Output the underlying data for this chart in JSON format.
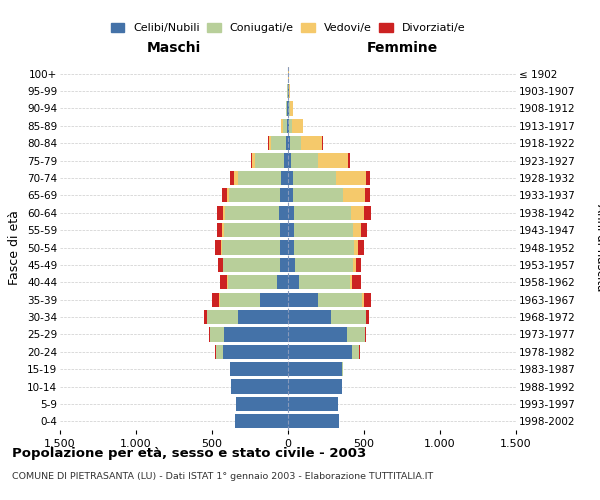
{
  "age_groups": [
    "0-4",
    "5-9",
    "10-14",
    "15-19",
    "20-24",
    "25-29",
    "30-34",
    "35-39",
    "40-44",
    "45-49",
    "50-54",
    "55-59",
    "60-64",
    "65-69",
    "70-74",
    "75-79",
    "80-84",
    "85-89",
    "90-94",
    "95-99",
    "100+"
  ],
  "birth_years": [
    "1998-2002",
    "1993-1997",
    "1988-1992",
    "1983-1987",
    "1978-1982",
    "1973-1977",
    "1968-1972",
    "1963-1967",
    "1958-1962",
    "1953-1957",
    "1948-1952",
    "1943-1947",
    "1938-1942",
    "1933-1937",
    "1928-1932",
    "1923-1927",
    "1918-1922",
    "1913-1917",
    "1908-1912",
    "1903-1907",
    "≤ 1902"
  ],
  "male": {
    "celibi": [
      350,
      340,
      375,
      380,
      430,
      420,
      330,
      185,
      70,
      50,
      50,
      55,
      60,
      55,
      45,
      25,
      15,
      8,
      4,
      2,
      2
    ],
    "coniugati": [
      0,
      0,
      0,
      0,
      45,
      90,
      200,
      265,
      325,
      375,
      385,
      365,
      355,
      330,
      285,
      195,
      95,
      28,
      8,
      2,
      0
    ],
    "vedovi": [
      0,
      0,
      0,
      0,
      0,
      0,
      4,
      4,
      4,
      5,
      8,
      12,
      14,
      18,
      25,
      18,
      18,
      12,
      4,
      2,
      0
    ],
    "divorziati": [
      0,
      0,
      0,
      0,
      4,
      8,
      18,
      48,
      48,
      28,
      35,
      38,
      38,
      28,
      28,
      8,
      4,
      0,
      0,
      0,
      0
    ]
  },
  "female": {
    "nubili": [
      335,
      330,
      355,
      355,
      420,
      390,
      285,
      195,
      75,
      45,
      40,
      40,
      38,
      35,
      30,
      20,
      10,
      6,
      4,
      4,
      2
    ],
    "coniugate": [
      0,
      0,
      0,
      4,
      48,
      115,
      225,
      295,
      335,
      385,
      395,
      385,
      375,
      325,
      285,
      178,
      78,
      22,
      8,
      2,
      0
    ],
    "vedove": [
      0,
      0,
      0,
      0,
      0,
      0,
      4,
      8,
      14,
      18,
      28,
      55,
      88,
      148,
      195,
      198,
      138,
      68,
      22,
      5,
      2
    ],
    "divorziate": [
      0,
      0,
      0,
      0,
      4,
      8,
      18,
      48,
      55,
      32,
      38,
      42,
      45,
      32,
      28,
      12,
      5,
      0,
      0,
      0,
      0
    ]
  },
  "colors": {
    "celibi": "#4472A8",
    "coniugati": "#B8CF9A",
    "vedovi": "#F5C96B",
    "divorziati": "#CC2222"
  },
  "xlim": 1500,
  "title": "Popolazione per età, sesso e stato civile - 2003",
  "subtitle": "COMUNE DI PIETRASANTA (LU) - Dati ISTAT 1° gennaio 2003 - Elaborazione TUTTITALIA.IT",
  "xlabel_left": "Maschi",
  "xlabel_right": "Femmine",
  "ylabel_left": "Fasce di età",
  "ylabel_right": "Anni di nascita",
  "legend_labels": [
    "Celibi/Nubili",
    "Coniugati/e",
    "Vedovi/e",
    "Divorziati/e"
  ],
  "xticks": [
    -1500,
    -1000,
    -500,
    0,
    500,
    1000,
    1500
  ],
  "xtick_labels": [
    "1.500",
    "1.000",
    "500",
    "0",
    "500",
    "1.000",
    "1.500"
  ],
  "background_color": "#ffffff",
  "grid_color": "#cccccc"
}
